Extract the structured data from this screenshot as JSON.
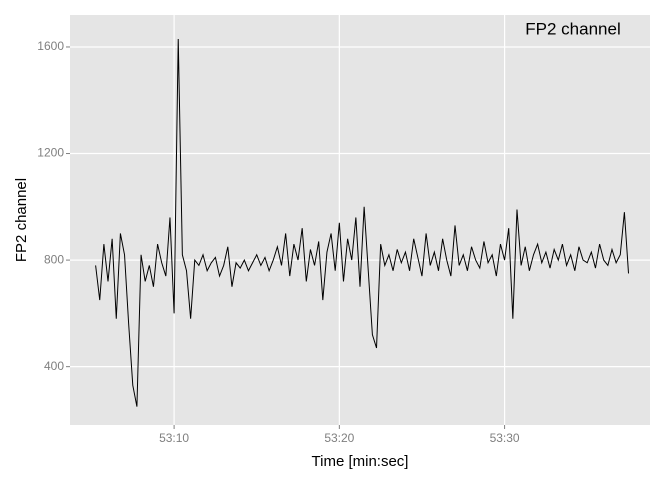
{
  "chart_data": {
    "type": "line",
    "annotation": "FP2 channel",
    "xlabel": "Time [min:sec]",
    "ylabel": "FP2 channel",
    "xlim": [
      3183.7,
      3218.8
    ],
    "ylim": [
      181,
      1720
    ],
    "xticks": [
      {
        "value": 3190,
        "label": "53:10"
      },
      {
        "value": 3200,
        "label": "53:20"
      },
      {
        "value": 3210,
        "label": "53:30"
      }
    ],
    "yticks": [
      400,
      800,
      1200,
      1600
    ],
    "grid": true,
    "color": "#000000",
    "x": [
      3185.25,
      3185.5,
      3185.75,
      3186,
      3186.25,
      3186.5,
      3186.75,
      3187,
      3187.25,
      3187.5,
      3187.75,
      3188,
      3188.25,
      3188.5,
      3188.75,
      3189,
      3189.25,
      3189.5,
      3189.75,
      3190,
      3190.25,
      3190.5,
      3190.75,
      3191,
      3191.25,
      3191.5,
      3191.75,
      3192,
      3192.25,
      3192.5,
      3192.75,
      3193,
      3193.25,
      3193.5,
      3193.75,
      3194,
      3194.25,
      3194.5,
      3194.75,
      3195,
      3195.25,
      3195.5,
      3195.75,
      3196,
      3196.25,
      3196.5,
      3196.75,
      3197,
      3197.25,
      3197.5,
      3197.75,
      3198,
      3198.25,
      3198.5,
      3198.75,
      3199,
      3199.25,
      3199.5,
      3199.75,
      3200,
      3200.25,
      3200.5,
      3200.75,
      3201,
      3201.25,
      3201.5,
      3201.75,
      3202,
      3202.25,
      3202.5,
      3202.75,
      3203,
      3203.25,
      3203.5,
      3203.75,
      3204,
      3204.25,
      3204.5,
      3204.75,
      3205,
      3205.25,
      3205.5,
      3205.75,
      3206,
      3206.25,
      3206.5,
      3206.75,
      3207,
      3207.25,
      3207.5,
      3207.75,
      3208,
      3208.25,
      3208.5,
      3208.75,
      3209,
      3209.25,
      3209.5,
      3209.75,
      3210,
      3210.25,
      3210.5,
      3210.75,
      3211,
      3211.25,
      3211.5,
      3211.75,
      3212,
      3212.25,
      3212.5,
      3212.75,
      3213,
      3213.25,
      3213.5,
      3213.75,
      3214,
      3214.25,
      3214.5,
      3214.75,
      3215,
      3215.25,
      3215.5,
      3215.75,
      3216,
      3216.25,
      3216.5,
      3216.75,
      3217,
      3217.25,
      3217.5
    ],
    "values": [
      780,
      650,
      860,
      720,
      880,
      580,
      900,
      820,
      560,
      330,
      250,
      820,
      720,
      780,
      700,
      860,
      790,
      740,
      960,
      600,
      1630,
      820,
      760,
      580,
      800,
      780,
      820,
      760,
      790,
      810,
      740,
      780,
      850,
      700,
      790,
      770,
      800,
      760,
      790,
      820,
      780,
      810,
      760,
      800,
      850,
      780,
      900,
      740,
      860,
      800,
      920,
      720,
      840,
      780,
      870,
      650,
      830,
      900,
      760,
      940,
      720,
      880,
      800,
      960,
      700,
      1000,
      760,
      520,
      470,
      860,
      780,
      820,
      760,
      840,
      790,
      830,
      760,
      880,
      810,
      740,
      900,
      780,
      830,
      760,
      880,
      800,
      740,
      930,
      780,
      820,
      760,
      850,
      800,
      770,
      870,
      790,
      820,
      740,
      860,
      800,
      920,
      580,
      990,
      780,
      850,
      760,
      820,
      860,
      790,
      830,
      770,
      840,
      800,
      860,
      780,
      820,
      760,
      850,
      800,
      790,
      830,
      770,
      860,
      800,
      780,
      840,
      790,
      820,
      980,
      750
    ]
  }
}
